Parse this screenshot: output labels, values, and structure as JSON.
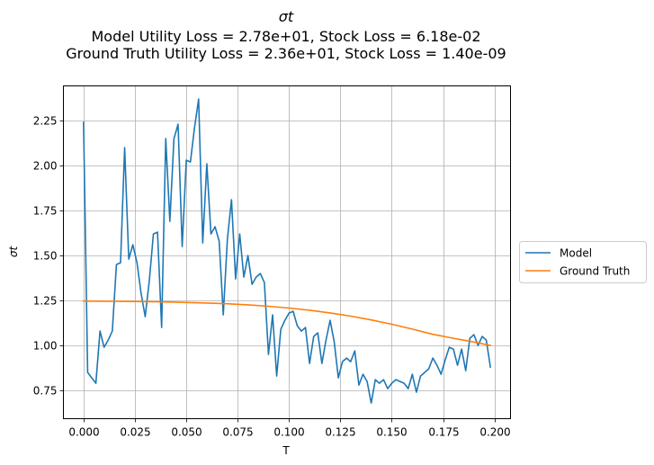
{
  "chart_data": {
    "type": "line",
    "title_lines": [
      "σt",
      "Model Utility Loss = 2.78e+01, Stock Loss = 6.18e-02",
      "Ground Truth Utility Loss = 2.36e+01, Stock Loss = 1.40e-09"
    ],
    "xlabel": "T",
    "ylabel": "σt",
    "xlim": [
      -0.0098,
      0.2078
    ],
    "ylim": [
      0.593,
      2.443
    ],
    "xticks": [
      0.0,
      0.025,
      0.05,
      0.075,
      0.1,
      0.125,
      0.15,
      0.175,
      0.2
    ],
    "xtick_labels": [
      "0.000",
      "0.025",
      "0.050",
      "0.075",
      "0.100",
      "0.125",
      "0.150",
      "0.175",
      "0.200"
    ],
    "yticks": [
      0.75,
      1.0,
      1.25,
      1.5,
      1.75,
      2.0,
      2.25
    ],
    "ytick_labels": [
      "0.75",
      "1.00",
      "1.25",
      "1.50",
      "1.75",
      "2.00",
      "2.25"
    ],
    "grid": true,
    "legend_position": "right-outside",
    "series": [
      {
        "name": "Model",
        "color": "#1f77b4",
        "x": [
          0.0,
          0.002,
          0.004,
          0.006,
          0.008,
          0.01,
          0.012,
          0.014,
          0.016,
          0.018,
          0.02,
          0.022,
          0.024,
          0.026,
          0.028,
          0.03,
          0.032,
          0.034,
          0.036,
          0.038,
          0.04,
          0.042,
          0.044,
          0.046,
          0.048,
          0.05,
          0.052,
          0.054,
          0.056,
          0.058,
          0.06,
          0.062,
          0.064,
          0.066,
          0.068,
          0.07,
          0.072,
          0.074,
          0.076,
          0.078,
          0.08,
          0.082,
          0.084,
          0.086,
          0.088,
          0.09,
          0.092,
          0.094,
          0.096,
          0.098,
          0.1,
          0.102,
          0.104,
          0.106,
          0.108,
          0.11,
          0.112,
          0.114,
          0.116,
          0.118,
          0.12,
          0.122,
          0.124,
          0.126,
          0.128,
          0.13,
          0.132,
          0.134,
          0.136,
          0.138,
          0.14,
          0.142,
          0.144,
          0.146,
          0.148,
          0.15,
          0.152,
          0.154,
          0.156,
          0.158,
          0.16,
          0.162,
          0.164,
          0.166,
          0.168,
          0.17,
          0.172,
          0.174,
          0.176,
          0.178,
          0.18,
          0.182,
          0.184,
          0.186,
          0.188,
          0.19,
          0.192,
          0.194,
          0.196,
          0.198
        ],
        "y": [
          2.24,
          0.85,
          0.82,
          0.79,
          1.08,
          0.99,
          1.03,
          1.08,
          1.45,
          1.46,
          2.1,
          1.48,
          1.56,
          1.46,
          1.29,
          1.16,
          1.36,
          1.62,
          1.63,
          1.1,
          2.15,
          1.69,
          2.15,
          2.23,
          1.55,
          2.03,
          2.02,
          2.21,
          2.37,
          1.57,
          2.01,
          1.62,
          1.66,
          1.58,
          1.17,
          1.59,
          1.81,
          1.37,
          1.62,
          1.38,
          1.5,
          1.34,
          1.38,
          1.4,
          1.35,
          0.95,
          1.17,
          0.83,
          1.09,
          1.14,
          1.18,
          1.19,
          1.11,
          1.08,
          1.1,
          0.9,
          1.05,
          1.07,
          0.9,
          1.03,
          1.14,
          1.02,
          0.82,
          0.91,
          0.93,
          0.91,
          0.97,
          0.78,
          0.84,
          0.8,
          0.68,
          0.81,
          0.79,
          0.81,
          0.76,
          0.79,
          0.81,
          0.8,
          0.79,
          0.76,
          0.84,
          0.74,
          0.83,
          0.85,
          0.87,
          0.93,
          0.89,
          0.84,
          0.92,
          0.99,
          0.98,
          0.89,
          0.98,
          0.86,
          1.04,
          1.06,
          1.0,
          1.05,
          1.03,
          0.88
        ]
      },
      {
        "name": "Ground Truth",
        "color": "#ff7f0e",
        "x": [
          0.0,
          0.01,
          0.02,
          0.03,
          0.04,
          0.05,
          0.06,
          0.07,
          0.08,
          0.09,
          0.1,
          0.11,
          0.12,
          0.13,
          0.14,
          0.15,
          0.16,
          0.17,
          0.18,
          0.19,
          0.198
        ],
        "y": [
          1.247,
          1.246,
          1.245,
          1.244,
          1.242,
          1.239,
          1.236,
          1.232,
          1.226,
          1.218,
          1.208,
          1.196,
          1.181,
          1.163,
          1.142,
          1.118,
          1.091,
          1.062,
          1.04,
          1.019,
          1.0
        ]
      }
    ]
  }
}
